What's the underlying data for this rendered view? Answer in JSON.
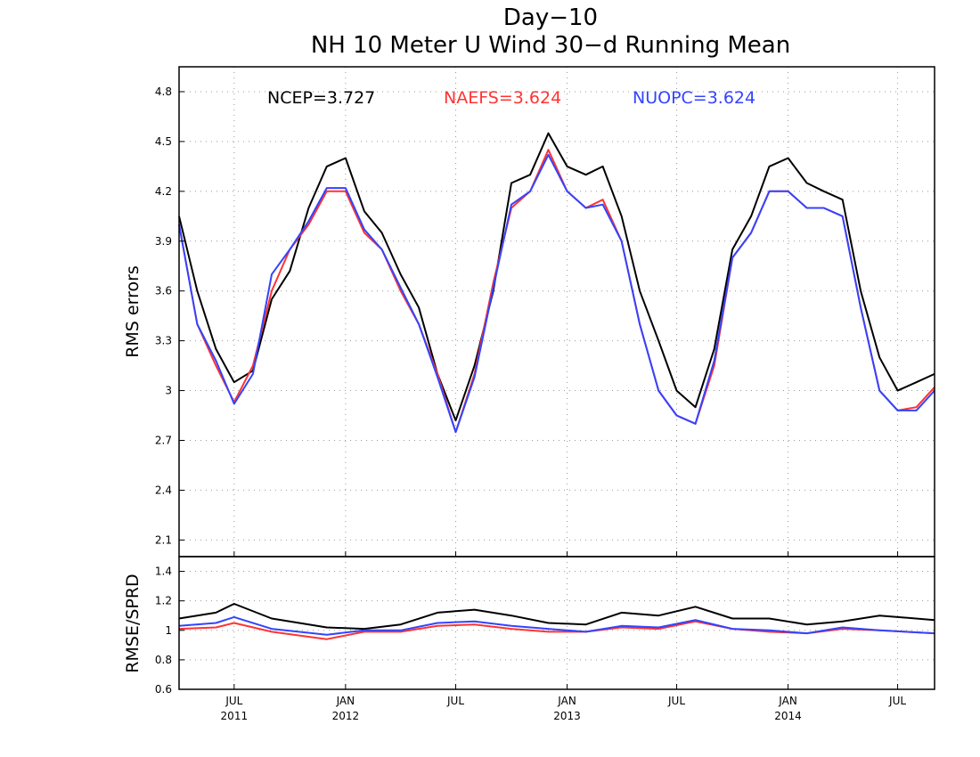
{
  "chart_data": [
    {
      "type": "line",
      "title": "Day−10",
      "subtitle": "NH 10 Meter U Wind 30−d Running Mean",
      "ylabel": "RMS errors",
      "ylim": [
        2.0,
        4.95
      ],
      "yticks": [
        "2.1",
        "2.4",
        "2.7",
        "3",
        "3.3",
        "3.6",
        "3.9",
        "4.2",
        "4.5",
        "4.8"
      ],
      "ytick_values": [
        2.1,
        2.4,
        2.7,
        3.0,
        3.3,
        3.6,
        3.9,
        4.2,
        4.5,
        4.8
      ],
      "grid": true,
      "x": [
        "2011-04-01",
        "2011-05-01",
        "2011-06-01",
        "2011-07-01",
        "2011-08-01",
        "2011-09-01",
        "2011-10-01",
        "2011-11-01",
        "2011-12-01",
        "2012-01-01",
        "2012-02-01",
        "2012-03-01",
        "2012-04-01",
        "2012-05-01",
        "2012-06-01",
        "2012-07-01",
        "2012-08-01",
        "2012-09-01",
        "2012-10-01",
        "2012-11-01",
        "2012-12-01",
        "2013-01-01",
        "2013-02-01",
        "2013-03-01",
        "2013-04-01",
        "2013-05-01",
        "2013-06-01",
        "2013-07-01",
        "2013-08-01",
        "2013-09-01",
        "2013-10-01",
        "2013-11-01",
        "2013-12-01",
        "2014-01-01",
        "2014-02-01",
        "2014-03-01",
        "2014-04-01",
        "2014-05-01",
        "2014-06-01",
        "2014-07-01",
        "2014-08-01",
        "2014-08-31"
      ],
      "series": [
        {
          "name": "NCEP",
          "color": "#000000",
          "values": [
            4.05,
            3.6,
            3.25,
            3.05,
            3.12,
            3.55,
            3.72,
            4.1,
            4.35,
            4.4,
            4.08,
            3.95,
            3.7,
            3.5,
            3.1,
            2.82,
            3.15,
            3.6,
            4.25,
            4.3,
            4.55,
            4.35,
            4.3,
            4.35,
            4.05,
            3.6,
            3.3,
            3.0,
            2.9,
            3.25,
            3.85,
            4.05,
            4.35,
            4.4,
            4.25,
            4.2,
            4.15,
            3.6,
            3.2,
            3.0,
            3.05,
            3.1
          ]
        },
        {
          "name": "NAEFS",
          "color": "#ff3333",
          "values": [
            4.0,
            3.4,
            3.15,
            2.93,
            3.15,
            3.6,
            3.85,
            4.0,
            4.2,
            4.2,
            3.95,
            3.85,
            3.6,
            3.4,
            3.1,
            2.75,
            3.1,
            3.65,
            4.1,
            4.2,
            4.45,
            4.2,
            4.1,
            4.15,
            3.9,
            3.4,
            3.0,
            2.85,
            2.8,
            3.15,
            3.8,
            3.95,
            4.2,
            4.2,
            4.1,
            4.1,
            4.05,
            3.5,
            3.0,
            2.88,
            2.9,
            3.02
          ]
        },
        {
          "name": "NUOPC",
          "color": "#3344ff",
          "values": [
            4.0,
            3.4,
            3.18,
            2.92,
            3.1,
            3.7,
            3.85,
            4.02,
            4.22,
            4.22,
            3.97,
            3.85,
            3.62,
            3.4,
            3.08,
            2.75,
            3.08,
            3.62,
            4.12,
            4.2,
            4.42,
            4.2,
            4.1,
            4.12,
            3.9,
            3.4,
            3.0,
            2.85,
            2.8,
            3.18,
            3.8,
            3.95,
            4.2,
            4.2,
            4.1,
            4.1,
            4.05,
            3.5,
            3.0,
            2.88,
            2.88,
            3.0
          ]
        }
      ],
      "annotations": [
        {
          "label": "NCEP=3.727",
          "color": "#000000"
        },
        {
          "label": "NAEFS=3.624",
          "color": "#ff3333"
        },
        {
          "label": "NUOPC=3.624",
          "color": "#3344ff"
        }
      ]
    },
    {
      "type": "line",
      "ylabel": "RMSE/SPRD",
      "ylim": [
        0.6,
        1.5
      ],
      "yticks": [
        "0.6",
        "0.8",
        "1",
        "1.2",
        "1.4"
      ],
      "ytick_values": [
        0.6,
        0.8,
        1.0,
        1.2,
        1.4
      ],
      "grid": true,
      "x_tick_labels": [
        {
          "month": "JUL",
          "year": "2011",
          "date": "2011-07-01"
        },
        {
          "month": "JAN",
          "year": "2012",
          "date": "2012-01-01"
        },
        {
          "month": "JUL",
          "year": "",
          "date": "2012-07-01"
        },
        {
          "month": "JAN",
          "year": "2013",
          "date": "2013-01-01"
        },
        {
          "month": "JUL",
          "year": "",
          "date": "2013-07-01"
        },
        {
          "month": "JAN",
          "year": "2014",
          "date": "2014-01-01"
        },
        {
          "month": "JUL",
          "year": "",
          "date": "2014-07-01"
        }
      ],
      "x": [
        "2011-04-01",
        "2011-06-01",
        "2011-07-01",
        "2011-09-01",
        "2011-12-01",
        "2012-02-01",
        "2012-04-01",
        "2012-06-01",
        "2012-08-01",
        "2012-10-01",
        "2012-12-01",
        "2013-02-01",
        "2013-04-01",
        "2013-06-01",
        "2013-08-01",
        "2013-10-01",
        "2013-12-01",
        "2014-02-01",
        "2014-04-01",
        "2014-06-01",
        "2014-08-31"
      ],
      "series": [
        {
          "name": "NCEP",
          "color": "#000000",
          "values": [
            1.08,
            1.12,
            1.18,
            1.08,
            1.02,
            1.01,
            1.04,
            1.12,
            1.14,
            1.1,
            1.05,
            1.04,
            1.12,
            1.1,
            1.16,
            1.08,
            1.08,
            1.04,
            1.06,
            1.1,
            1.07
          ]
        },
        {
          "name": "NAEFS",
          "color": "#ff3333",
          "values": [
            1.01,
            1.02,
            1.05,
            0.99,
            0.94,
            0.99,
            0.99,
            1.03,
            1.04,
            1.01,
            0.99,
            0.99,
            1.02,
            1.01,
            1.06,
            1.01,
            0.99,
            0.98,
            1.01,
            1.0,
            0.98
          ]
        },
        {
          "name": "NUOPC",
          "color": "#3344ff",
          "values": [
            1.03,
            1.05,
            1.09,
            1.01,
            0.97,
            1.0,
            1.0,
            1.05,
            1.06,
            1.03,
            1.01,
            0.99,
            1.03,
            1.02,
            1.07,
            1.01,
            1.0,
            0.98,
            1.02,
            1.0,
            0.98
          ]
        }
      ]
    }
  ]
}
